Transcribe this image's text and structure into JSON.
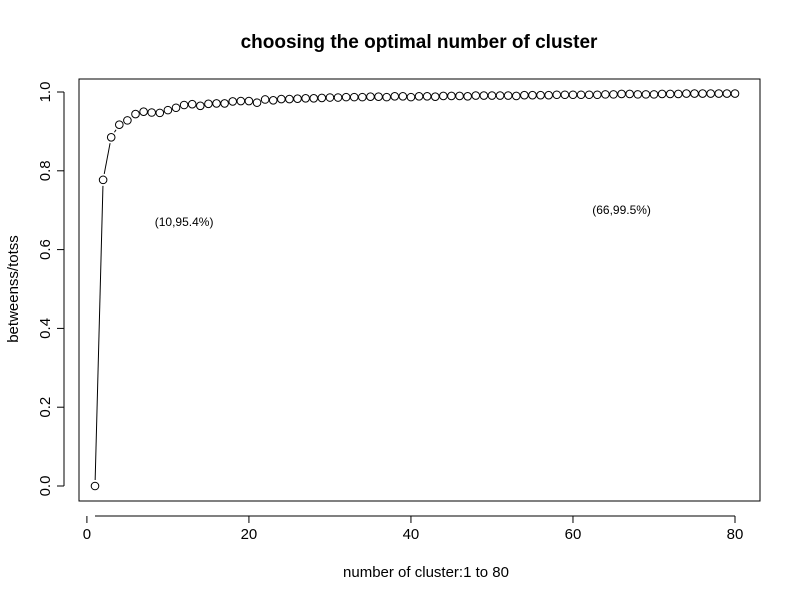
{
  "chart_data": {
    "type": "scatter",
    "title": "choosing the optimal number of cluster",
    "xlabel": "number of cluster:1 to 80",
    "ylabel": "betweenss/totss",
    "xlim": [
      1,
      80
    ],
    "ylim": [
      0.0,
      1.0
    ],
    "xticks": [
      0,
      20,
      40,
      60,
      80
    ],
    "xtick_labels": [
      "0",
      "20",
      "40",
      "60",
      "80"
    ],
    "yticks": [
      0.0,
      0.2,
      0.4,
      0.6,
      0.8,
      1.0
    ],
    "ytick_labels": [
      "0.0",
      "0.2",
      "0.4",
      "0.6",
      "0.8",
      "1.0"
    ],
    "grid": false,
    "style": "type b (points with connecting lines), open circles",
    "x": [
      1,
      2,
      3,
      4,
      5,
      6,
      7,
      8,
      9,
      10,
      11,
      12,
      13,
      14,
      15,
      16,
      17,
      18,
      19,
      20,
      21,
      22,
      23,
      24,
      25,
      26,
      27,
      28,
      29,
      30,
      31,
      32,
      33,
      34,
      35,
      36,
      37,
      38,
      39,
      40,
      41,
      42,
      43,
      44,
      45,
      46,
      47,
      48,
      49,
      50,
      51,
      52,
      53,
      54,
      55,
      56,
      57,
      58,
      59,
      60,
      61,
      62,
      63,
      64,
      65,
      66,
      67,
      68,
      69,
      70,
      71,
      72,
      73,
      74,
      75,
      76,
      77,
      78,
      79,
      80
    ],
    "y": [
      0.0,
      0.777,
      0.885,
      0.917,
      0.928,
      0.944,
      0.95,
      0.948,
      0.947,
      0.954,
      0.96,
      0.967,
      0.969,
      0.965,
      0.97,
      0.971,
      0.971,
      0.976,
      0.977,
      0.977,
      0.973,
      0.981,
      0.979,
      0.982,
      0.982,
      0.983,
      0.984,
      0.984,
      0.985,
      0.986,
      0.986,
      0.987,
      0.987,
      0.987,
      0.988,
      0.988,
      0.987,
      0.989,
      0.989,
      0.987,
      0.989,
      0.989,
      0.988,
      0.99,
      0.99,
      0.99,
      0.989,
      0.991,
      0.991,
      0.991,
      0.991,
      0.991,
      0.99,
      0.992,
      0.992,
      0.992,
      0.992,
      0.993,
      0.993,
      0.993,
      0.993,
      0.993,
      0.993,
      0.994,
      0.994,
      0.995,
      0.995,
      0.994,
      0.994,
      0.994,
      0.995,
      0.995,
      0.995,
      0.996,
      0.996,
      0.996,
      0.996,
      0.996,
      0.996,
      0.996
    ],
    "annotations": [
      {
        "text": "(10,95.4%)",
        "x": 12,
        "y": 0.67
      },
      {
        "text": "(66,99.5%)",
        "x": 66,
        "y": 0.7
      }
    ]
  }
}
